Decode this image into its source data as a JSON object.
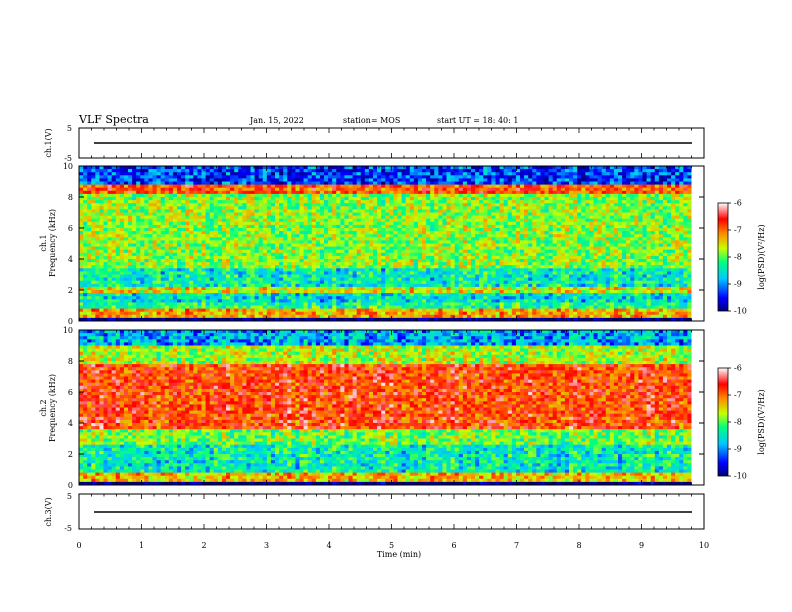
{
  "header": {
    "title": "VLF Spectra",
    "date": "Jan. 15, 2022",
    "station": "station= MOS",
    "start": "start  UT =  18: 40: 1"
  },
  "chart_data": [
    {
      "type": "line",
      "panel": "ch1-waveform",
      "ylabel": "ch.1(V)",
      "ylim": [
        -5,
        5
      ],
      "yticks": [
        "5",
        "-5"
      ],
      "xlim": [
        0,
        10
      ],
      "series": [
        {
          "values_description_level": 0
        }
      ]
    },
    {
      "type": "heatmap",
      "panel": "ch1-spectrogram",
      "ylabel_top": "ch.1",
      "ylabel": "Frequency (kHz)",
      "ylim": [
        0,
        10
      ],
      "yticks": [
        "0",
        "2",
        "4",
        "6",
        "8",
        "10"
      ],
      "xlim": [
        0,
        9.8
      ],
      "colorbar": {
        "label": "log(PSD)(V²/Hz)",
        "ticks": [
          "-6",
          "-7",
          "-8",
          "-9",
          "-10"
        ],
        "range": [
          -10,
          -6
        ]
      },
      "bands": [
        {
          "f": [
            0,
            0.3
          ],
          "level": -10
        },
        {
          "f": [
            0.3,
            0.9
          ],
          "level": -7.3
        },
        {
          "f": [
            0.9,
            1.3
          ],
          "level": -8.3
        },
        {
          "f": [
            1.3,
            1.8
          ],
          "level": -8.6
        },
        {
          "f": [
            1.8,
            2.1
          ],
          "level": -7.6
        },
        {
          "f": [
            2.1,
            3.5
          ],
          "level": -8.5
        },
        {
          "f": [
            3.5,
            8.2
          ],
          "level": -7.9
        },
        {
          "f": [
            8.2,
            8.9
          ],
          "level": -6.9
        },
        {
          "f": [
            8.9,
            10
          ],
          "level": -9.3
        }
      ]
    },
    {
      "type": "heatmap",
      "panel": "ch2-spectrogram",
      "ylabel_top": "ch.2",
      "ylabel": "Frequency (kHz)",
      "ylim": [
        0,
        10
      ],
      "yticks": [
        "0",
        "2",
        "4",
        "6",
        "8",
        "10"
      ],
      "xlim": [
        0,
        9.8
      ],
      "colorbar": {
        "label": "log(PSD)(V²/Hz)",
        "ticks": [
          "-6",
          "-7",
          "-8",
          "-9",
          "-10"
        ],
        "range": [
          -10,
          -6
        ]
      },
      "bands": [
        {
          "f": [
            0,
            0.3
          ],
          "level": -10
        },
        {
          "f": [
            0.3,
            0.8
          ],
          "level": -7.4
        },
        {
          "f": [
            0.8,
            2.6
          ],
          "level": -8.5
        },
        {
          "f": [
            2.6,
            3.6
          ],
          "level": -8.0
        },
        {
          "f": [
            3.6,
            7.9
          ],
          "level": -6.8
        },
        {
          "f": [
            7.9,
            9.0
          ],
          "level": -7.8
        },
        {
          "f": [
            9.0,
            10
          ],
          "level": -8.9
        }
      ]
    },
    {
      "type": "line",
      "panel": "ch3-waveform",
      "ylabel": "ch.3(V)",
      "ylim": [
        -5,
        5
      ],
      "yticks": [
        "5",
        "-5"
      ],
      "xlim": [
        0,
        10
      ],
      "series": [
        {
          "values_description_level": 0
        }
      ]
    }
  ],
  "xaxis": {
    "label": "Time (min)",
    "range": [
      0,
      10
    ],
    "ticks": [
      "0",
      "1",
      "2",
      "3",
      "4",
      "5",
      "6",
      "7",
      "8",
      "9",
      "10"
    ]
  },
  "colors": {
    "scale": [
      "#00007a",
      "#0000ff",
      "#00c8ff",
      "#00ff80",
      "#c8ff00",
      "#ff8800",
      "#ff0000",
      "#ffffff"
    ],
    "line": "#000000"
  }
}
